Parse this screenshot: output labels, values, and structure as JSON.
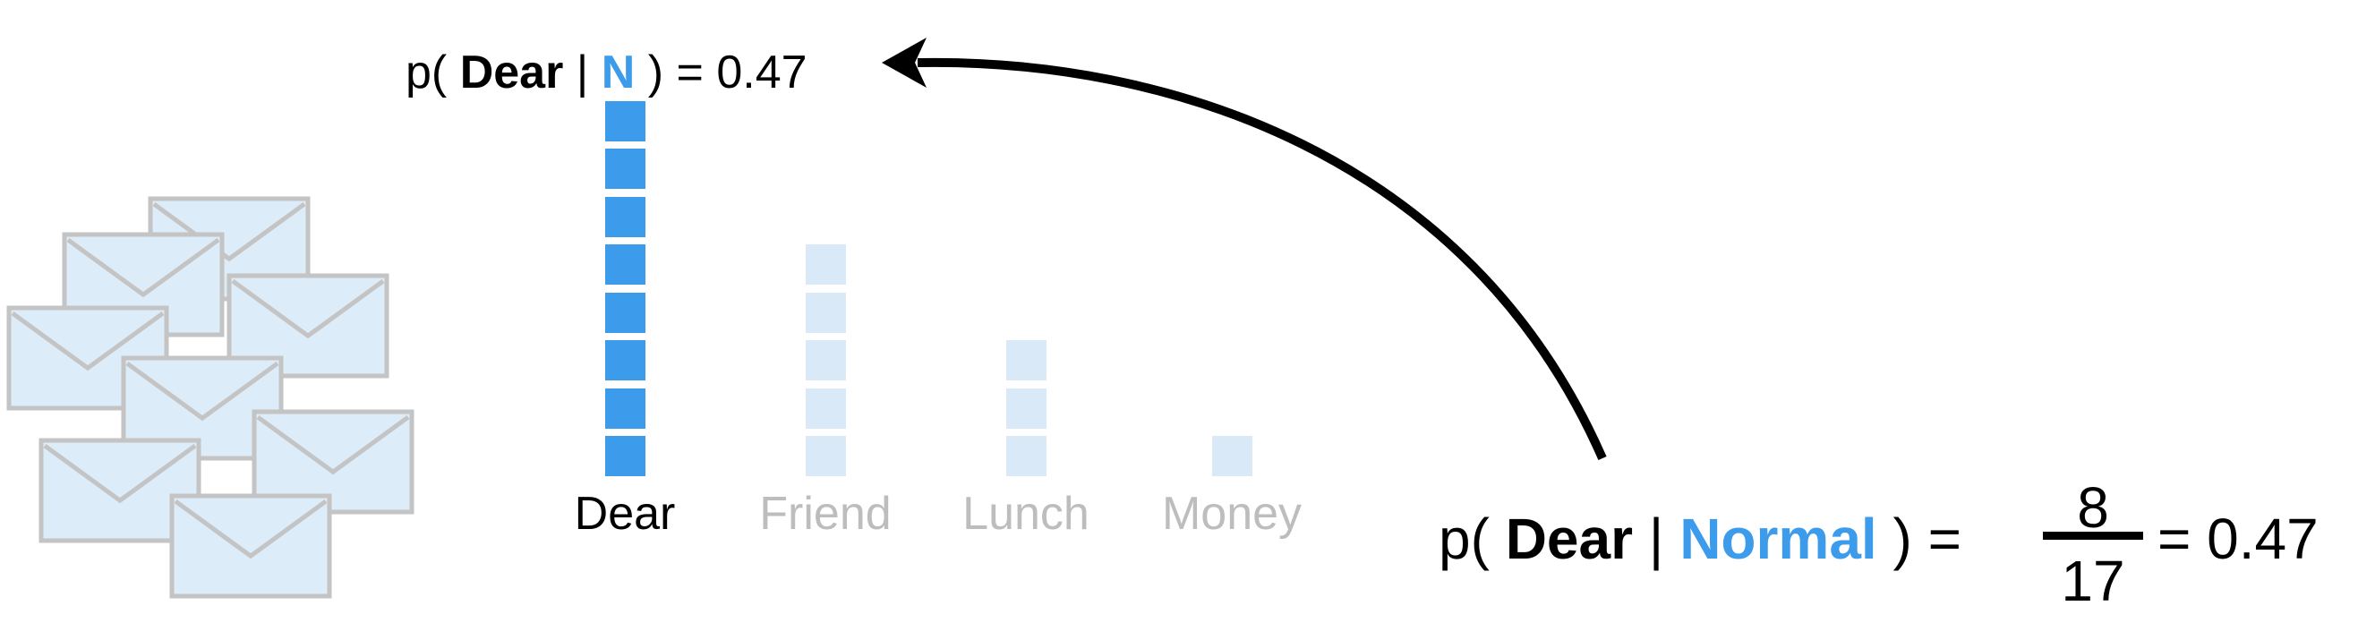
{
  "top_equation": {
    "prefix": "p(",
    "word": "Dear",
    "bar": "|",
    "class_abbrev": "N",
    "suffix": ") = 0.47"
  },
  "bottom_equation": {
    "prefix": "p(",
    "word": "Dear",
    "bar": "|",
    "class_name": "Normal",
    "suffix": ") =",
    "numerator": "8",
    "denominator": "17",
    "result": "= 0.47"
  },
  "chart_data": {
    "type": "bar",
    "categories": [
      "Dear",
      "Friend",
      "Lunch",
      "Money"
    ],
    "values": [
      8,
      5,
      3,
      1
    ],
    "highlighted": "Dear"
  },
  "colors": {
    "highlight_block": "#3d9bec",
    "faded_block": "#d9e9f8",
    "highlight_text": "#000000",
    "faded_text": "#bdbdbd",
    "class_text": "#3d9bec",
    "envelope_fill": "#dcecf9",
    "envelope_stroke": "#c4c4c4",
    "arrow": "#000000"
  },
  "icons": [
    "envelope-icon"
  ]
}
